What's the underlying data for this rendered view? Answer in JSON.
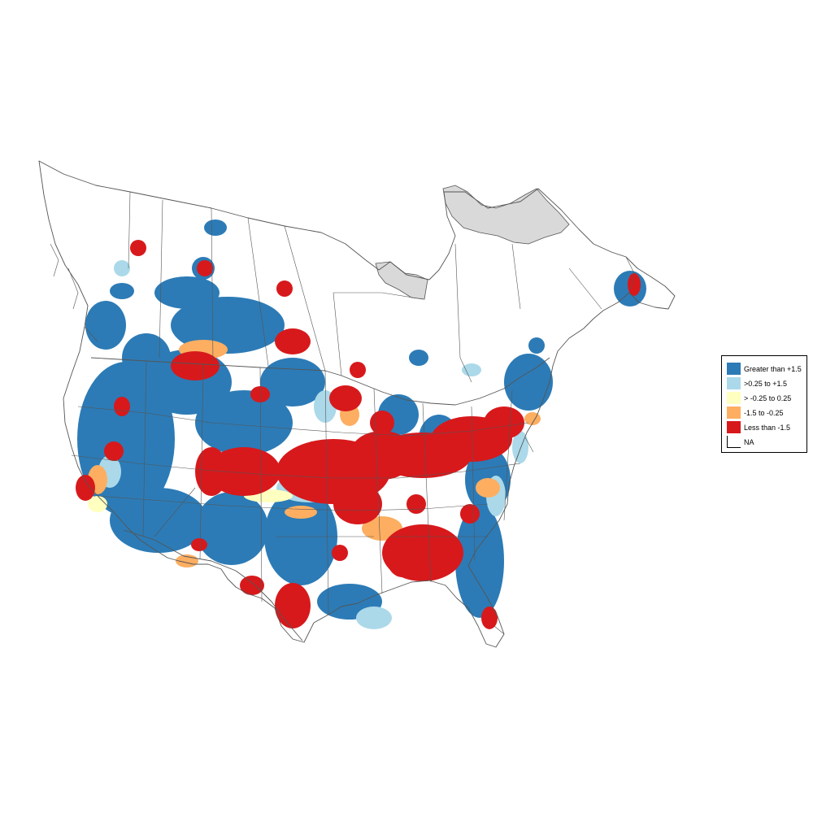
{
  "colors": {
    "greater_than_1_5": "#2c7bb6",
    "mid_positive": "#abd9e9",
    "near_zero": "#ffffbf",
    "mid_negative": "#fdae61",
    "less_than_neg_1_5": "#d7191c",
    "na": "#ffffff",
    "no_data_region": "#d9d9d9",
    "boundary": "#555555"
  },
  "legend": {
    "items": [
      {
        "label": "Greater than +1.5",
        "color_key": "greater_than_1_5"
      },
      {
        "label": ">0.25 to +1.5",
        "color_key": "mid_positive"
      },
      {
        "label": "> -0.25 to 0.25",
        "color_key": "near_zero"
      },
      {
        "label": "-1.5 to -0.25",
        "color_key": "mid_negative"
      },
      {
        "label": "Less than -1.5",
        "color_key": "less_than_neg_1_5"
      },
      {
        "label": "NA",
        "color_key": "na"
      }
    ]
  }
}
